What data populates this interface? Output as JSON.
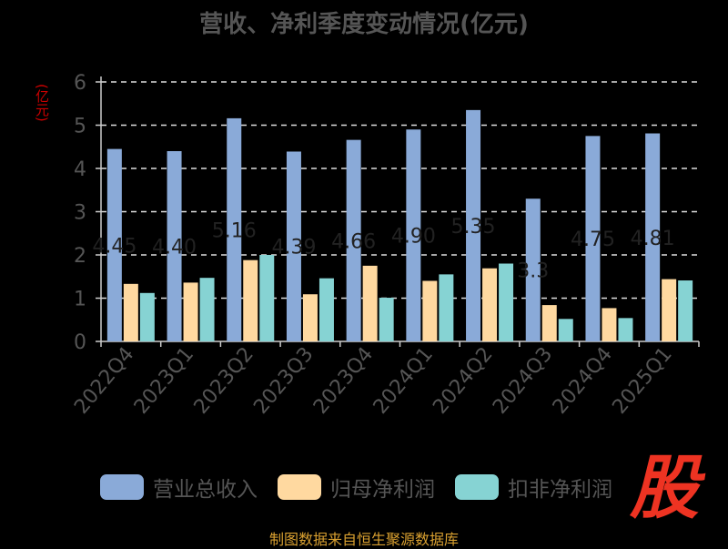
{
  "title": "营收、净利季度变动情况(亿元)",
  "ylabel": "(亿元)",
  "source": "制图数据来自恒生聚源数据库",
  "logo_text": "股",
  "colors": {
    "background": "#000000",
    "revenue": "#8aaad8",
    "net_profit": "#ffd9a0",
    "deducted_profit": "#86d3d3",
    "axis": "#cccccc",
    "text": "#555555"
  },
  "chart_data": {
    "type": "bar",
    "title": "营收、净利季度变动情况(亿元)",
    "ylabel": "(亿元)",
    "ylim": [
      0,
      6
    ],
    "yticks": [
      0,
      1,
      2,
      3,
      4,
      5,
      6
    ],
    "grid": true,
    "legend_position": "bottom",
    "categories": [
      "2022Q4",
      "2023Q1",
      "2023Q2",
      "2023Q3",
      "2023Q4",
      "2024Q1",
      "2024Q2",
      "2024Q3",
      "2024Q4",
      "2025Q1"
    ],
    "series": [
      {
        "name": "营业总收入",
        "values": [
          4.45,
          4.4,
          5.16,
          4.39,
          4.66,
          4.9,
          5.35,
          3.3,
          4.75,
          4.81
        ],
        "labels": [
          "4.45",
          "4.40",
          "5.16",
          "4.39",
          "4.66",
          "4.90",
          "5.35",
          "3.3",
          "4.75",
          "4.81"
        ]
      },
      {
        "name": "归母净利润",
        "values": [
          1.33,
          1.36,
          1.88,
          1.09,
          1.75,
          1.4,
          1.69,
          0.84,
          0.77,
          1.44
        ]
      },
      {
        "name": "扣非净利润",
        "values": [
          1.12,
          1.47,
          2.0,
          1.46,
          1.01,
          1.55,
          1.8,
          0.52,
          0.54,
          1.41
        ]
      }
    ]
  },
  "legend": [
    {
      "label": "营业总收入"
    },
    {
      "label": "归母净利润"
    },
    {
      "label": "扣非净利润"
    }
  ]
}
